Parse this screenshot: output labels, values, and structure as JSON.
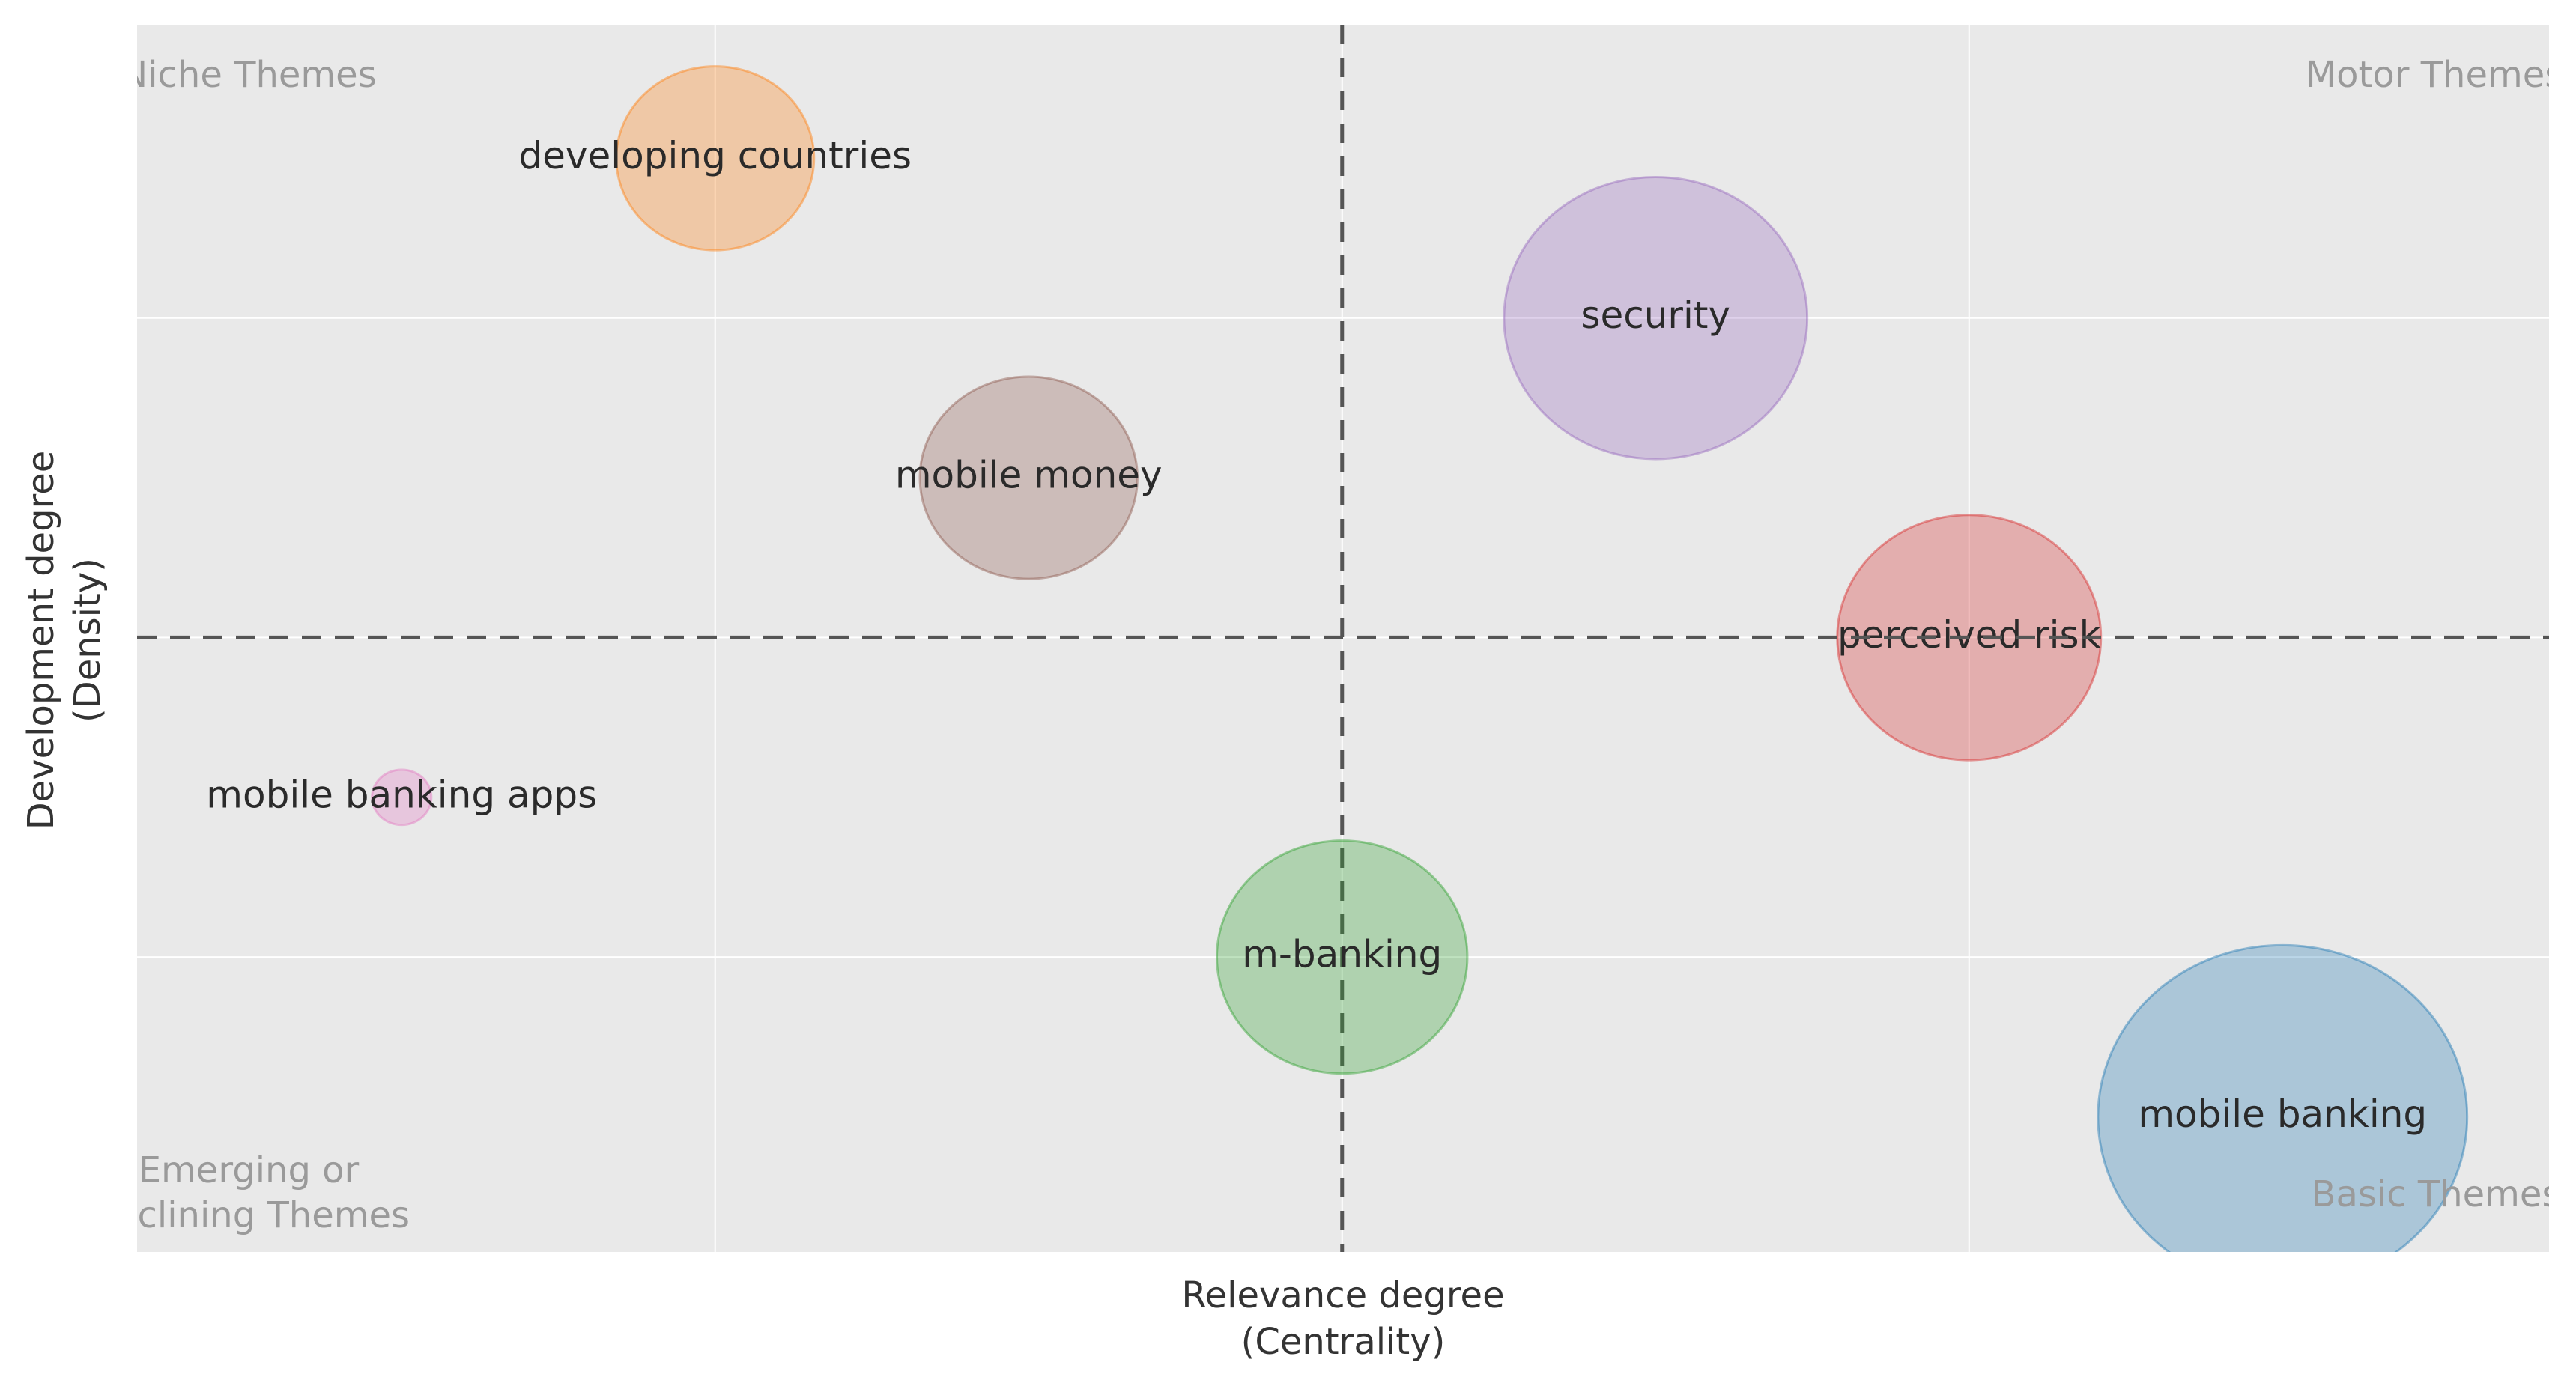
{
  "chart_data": {
    "type": "bubble",
    "xlabel": [
      "Relevance degree",
      "(Centrality)"
    ],
    "ylabel": [
      "Development degree",
      "(Density)"
    ],
    "quadrants": {
      "top_left": [
        "Niche Themes"
      ],
      "top_right": [
        "Motor Themes"
      ],
      "bottom_left": [
        "Emerging or",
        "Declining Themes"
      ],
      "bottom_right": [
        "Basic Themes"
      ]
    },
    "xlim": [
      0.078,
      3.925
    ],
    "ylim": [
      0.077,
      3.918
    ],
    "xticks": [
      1,
      2,
      3
    ],
    "yticks": [
      1,
      2,
      3
    ],
    "xref": 2,
    "yref": 2,
    "grid": true,
    "series": [
      {
        "name": "developing countries",
        "color": "#ff7f0e",
        "x": [
          1
        ],
        "values": [
          3.5
        ],
        "sizes": [
          60
        ]
      },
      {
        "name": "mobile money",
        "color": "#8c564b",
        "x": [
          1.5
        ],
        "values": [
          2.5
        ],
        "sizes": [
          66
        ]
      },
      {
        "name": "security",
        "color": "#9467bd",
        "x": [
          2.5
        ],
        "values": [
          3
        ],
        "sizes": [
          92
        ]
      },
      {
        "name": "perceived risk",
        "color": "#d62728",
        "x": [
          3
        ],
        "values": [
          2
        ],
        "sizes": [
          80
        ]
      },
      {
        "name": "mobile banking apps",
        "color": "#e377c2",
        "x": [
          0.5
        ],
        "values": [
          1.5
        ],
        "sizes": [
          18
        ]
      },
      {
        "name": "m-banking",
        "color": "#2ca02c",
        "x": [
          2
        ],
        "values": [
          1
        ],
        "sizes": [
          76
        ]
      },
      {
        "name": "mobile banking",
        "color": "#1f77b4",
        "x": [
          3.5
        ],
        "values": [
          0.5
        ],
        "sizes": [
          112
        ]
      }
    ]
  }
}
